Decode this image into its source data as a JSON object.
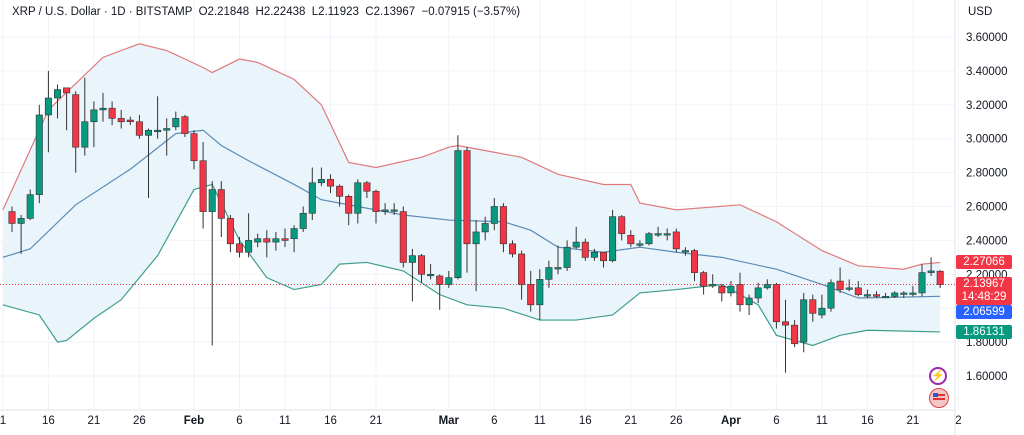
{
  "header": {
    "symbol": "XRP / U.S. Dollar · 1D · BITSTAMP",
    "open": "O2.21848",
    "high": "H2.22438",
    "low": "L2.11923",
    "close": "C2.13967",
    "change": "−0.07915 (−3.57%)"
  },
  "axis": {
    "currency": "USD"
  },
  "badges": {
    "upper_band": "2.27066",
    "last_price": "2.13967",
    "countdown": "14:48:29",
    "middle_band": "2.06599",
    "lower_band": "1.86131"
  },
  "icons": [
    "lightning-icon",
    "us-flag-icon"
  ],
  "colors": {
    "up": "#089981",
    "down": "#f23645",
    "upper_band": "#e07a7a",
    "middle_band": "#5b8bb5",
    "lower_band": "#3f9e8a",
    "band_fill": "#eaf4fb",
    "middle_badge": "#2962ff"
  },
  "chart_data": {
    "type": "candlestick",
    "title": "XRP / U.S. Dollar · 1D · BITSTAMP",
    "ylim": [
      1.45,
      3.7
    ],
    "yticks": [
      3.6,
      3.4,
      3.2,
      3.0,
      2.8,
      2.6,
      2.4,
      2.2,
      2.0,
      1.8,
      1.6
    ],
    "ytick_labels": [
      "3.60000",
      "3.40000",
      "3.20000",
      "3.00000",
      "2.80000",
      "2.60000",
      "2.40000",
      "2.20000",
      "2.00000",
      "1.80000",
      "1.60000"
    ],
    "xticks": [
      {
        "date": "Jan 11",
        "label": "1"
      },
      {
        "date": "Jan 16",
        "label": "16"
      },
      {
        "date": "Jan 21",
        "label": "21"
      },
      {
        "date": "Jan 26",
        "label": "26"
      },
      {
        "date": "Feb 1",
        "label": "Feb"
      },
      {
        "date": "Feb 6",
        "label": "6"
      },
      {
        "date": "Feb 11",
        "label": "11"
      },
      {
        "date": "Feb 16",
        "label": "16"
      },
      {
        "date": "Feb 21",
        "label": "21"
      },
      {
        "date": "Mar 1",
        "label": "Mar"
      },
      {
        "date": "Mar 6",
        "label": "6"
      },
      {
        "date": "Mar 11",
        "label": "11"
      },
      {
        "date": "Mar 16",
        "label": "16"
      },
      {
        "date": "Mar 21",
        "label": "21"
      },
      {
        "date": "Mar 26",
        "label": "26"
      },
      {
        "date": "Apr 1",
        "label": "Apr"
      },
      {
        "date": "Apr 6",
        "label": "6"
      },
      {
        "date": "Apr 11",
        "label": "11"
      },
      {
        "date": "Apr 16",
        "label": "16"
      },
      {
        "date": "Apr 21",
        "label": "21"
      },
      {
        "date": "Apr 26",
        "label": "2"
      }
    ],
    "start_date": "Jan 12",
    "last_price": 2.13967,
    "candles_ohlc": [
      [
        2.57,
        2.6,
        2.45,
        2.5
      ],
      [
        2.5,
        2.55,
        2.32,
        2.53
      ],
      [
        2.53,
        2.7,
        2.52,
        2.67
      ],
      [
        2.67,
        3.2,
        2.62,
        3.14
      ],
      [
        3.14,
        3.4,
        2.92,
        3.24
      ],
      [
        3.24,
        3.32,
        3.12,
        3.29
      ],
      [
        3.3,
        3.3,
        3.05,
        3.27
      ],
      [
        3.26,
        3.28,
        2.8,
        2.95
      ],
      [
        2.95,
        3.36,
        2.9,
        3.1
      ],
      [
        3.1,
        3.22,
        2.95,
        3.17
      ],
      [
        3.17,
        3.27,
        3.1,
        3.18
      ],
      [
        3.18,
        3.22,
        3.08,
        3.12
      ],
      [
        3.12,
        3.17,
        3.06,
        3.1
      ],
      [
        3.11,
        3.13,
        3.08,
        3.1
      ],
      [
        3.1,
        3.14,
        3.0,
        3.02
      ],
      [
        3.02,
        3.06,
        2.65,
        3.05
      ],
      [
        3.05,
        3.25,
        3.0,
        3.05
      ],
      [
        3.05,
        3.12,
        2.9,
        3.06
      ],
      [
        3.07,
        3.16,
        3.05,
        3.12
      ],
      [
        3.13,
        3.14,
        3.01,
        3.03
      ],
      [
        3.03,
        3.05,
        2.82,
        2.87
      ],
      [
        2.87,
        2.98,
        2.47,
        2.57
      ],
      [
        2.57,
        2.75,
        1.78,
        2.7
      ],
      [
        2.7,
        2.75,
        2.42,
        2.53
      ],
      [
        2.53,
        2.55,
        2.33,
        2.38
      ],
      [
        2.38,
        2.42,
        2.3,
        2.33
      ],
      [
        2.33,
        2.56,
        2.3,
        2.4
      ],
      [
        2.39,
        2.44,
        2.36,
        2.41
      ],
      [
        2.41,
        2.46,
        2.3,
        2.39
      ],
      [
        2.39,
        2.45,
        2.34,
        2.41
      ],
      [
        2.41,
        2.47,
        2.36,
        2.4
      ],
      [
        2.41,
        2.49,
        2.33,
        2.47
      ],
      [
        2.47,
        2.6,
        2.45,
        2.56
      ],
      [
        2.56,
        2.83,
        2.52,
        2.74
      ],
      [
        2.74,
        2.83,
        2.72,
        2.76
      ],
      [
        2.76,
        2.79,
        2.68,
        2.72
      ],
      [
        2.72,
        2.73,
        2.6,
        2.66
      ],
      [
        2.66,
        2.67,
        2.49,
        2.56
      ],
      [
        2.56,
        2.76,
        2.5,
        2.74
      ],
      [
        2.74,
        2.75,
        2.65,
        2.69
      ],
      [
        2.69,
        2.7,
        2.5,
        2.57
      ],
      [
        2.57,
        2.62,
        2.55,
        2.58
      ],
      [
        2.58,
        2.62,
        2.55,
        2.58
      ],
      [
        2.57,
        2.6,
        2.24,
        2.27
      ],
      [
        2.27,
        2.35,
        2.04,
        2.31
      ],
      [
        2.31,
        2.32,
        2.15,
        2.2
      ],
      [
        2.2,
        2.26,
        2.17,
        2.2
      ],
      [
        2.19,
        2.2,
        1.99,
        2.14
      ],
      [
        2.14,
        2.22,
        2.12,
        2.18
      ],
      [
        2.18,
        3.02,
        2.17,
        2.93
      ],
      [
        2.93,
        2.95,
        2.21,
        2.38
      ],
      [
        2.38,
        2.52,
        2.1,
        2.45
      ],
      [
        2.45,
        2.54,
        2.4,
        2.5
      ],
      [
        2.5,
        2.65,
        2.46,
        2.6
      ],
      [
        2.6,
        2.62,
        2.33,
        2.38
      ],
      [
        2.38,
        2.4,
        2.3,
        2.32
      ],
      [
        2.32,
        2.34,
        2.05,
        2.14
      ],
      [
        2.14,
        2.22,
        1.98,
        2.02
      ],
      [
        2.02,
        2.23,
        1.93,
        2.17
      ],
      [
        2.17,
        2.28,
        2.12,
        2.24
      ],
      [
        2.24,
        2.37,
        2.2,
        2.24
      ],
      [
        2.24,
        2.4,
        2.22,
        2.36
      ],
      [
        2.36,
        2.48,
        2.35,
        2.39
      ],
      [
        2.39,
        2.41,
        2.28,
        2.3
      ],
      [
        2.3,
        2.35,
        2.28,
        2.33
      ],
      [
        2.33,
        2.33,
        2.24,
        2.28
      ],
      [
        2.28,
        2.58,
        2.27,
        2.54
      ],
      [
        2.54,
        2.55,
        2.4,
        2.44
      ],
      [
        2.43,
        2.46,
        2.36,
        2.38
      ],
      [
        2.38,
        2.4,
        2.36,
        2.38
      ],
      [
        2.38,
        2.45,
        2.37,
        2.44
      ],
      [
        2.44,
        2.48,
        2.42,
        2.44
      ],
      [
        2.44,
        2.47,
        2.4,
        2.44
      ],
      [
        2.45,
        2.47,
        2.33,
        2.35
      ],
      [
        2.34,
        2.36,
        2.31,
        2.34
      ],
      [
        2.34,
        2.35,
        2.16,
        2.21
      ],
      [
        2.21,
        2.22,
        2.08,
        2.13
      ],
      [
        2.14,
        2.2,
        2.12,
        2.14
      ],
      [
        2.13,
        2.14,
        2.04,
        2.09
      ],
      [
        2.09,
        2.16,
        2.07,
        2.13
      ],
      [
        2.14,
        2.21,
        1.98,
        2.02
      ],
      [
        2.02,
        2.08,
        1.96,
        2.06
      ],
      [
        2.06,
        2.15,
        2.03,
        2.12
      ],
      [
        2.12,
        2.17,
        2.11,
        2.14
      ],
      [
        2.14,
        2.15,
        1.88,
        1.92
      ],
      [
        1.92,
        2.05,
        1.62,
        1.9
      ],
      [
        1.9,
        1.93,
        1.77,
        1.79
      ],
      [
        1.8,
        2.09,
        1.74,
        2.05
      ],
      [
        2.05,
        2.08,
        1.92,
        1.97
      ],
      [
        1.96,
        2.08,
        1.94,
        2.0
      ],
      [
        2.0,
        2.17,
        1.98,
        2.15
      ],
      [
        2.16,
        2.24,
        2.09,
        2.11
      ],
      [
        2.12,
        2.17,
        2.1,
        2.12
      ],
      [
        2.12,
        2.16,
        2.07,
        2.08
      ],
      [
        2.08,
        2.11,
        2.06,
        2.08
      ],
      [
        2.08,
        2.1,
        2.06,
        2.07
      ],
      [
        2.07,
        2.09,
        2.06,
        2.07
      ],
      [
        2.07,
        2.1,
        2.06,
        2.09
      ],
      [
        2.09,
        2.1,
        2.06,
        2.09
      ],
      [
        2.09,
        2.13,
        2.07,
        2.09
      ],
      [
        2.09,
        2.26,
        2.07,
        2.21
      ],
      [
        2.21,
        2.3,
        2.19,
        2.22
      ],
      [
        2.21848,
        2.22438,
        2.11923,
        2.13967
      ]
    ],
    "bollinger_upper": [
      [
        "Jan 11",
        2.58
      ],
      [
        "Jan 16",
        3.17
      ],
      [
        "Jan 22",
        3.48
      ],
      [
        "Jan 26",
        3.56
      ],
      [
        "Jan 29",
        3.52
      ],
      [
        "Feb 2",
        3.42
      ],
      [
        "Feb 3",
        3.39
      ],
      [
        "Feb 6",
        3.47
      ],
      [
        "Feb 8",
        3.45
      ],
      [
        "Feb 12",
        3.35
      ],
      [
        "Feb 15",
        3.2
      ],
      [
        "Feb 18",
        2.86
      ],
      [
        "Feb 21",
        2.83
      ],
      [
        "Feb 26",
        2.89
      ],
      [
        "Mar 1",
        2.95
      ],
      [
        "Mar 2",
        2.96
      ],
      [
        "Mar 9",
        2.89
      ],
      [
        "Mar 13",
        2.79
      ],
      [
        "Mar 18",
        2.73
      ],
      [
        "Mar 21",
        2.73
      ],
      [
        "Mar 22",
        2.62
      ],
      [
        "Mar 26",
        2.58
      ],
      [
        "Apr 2",
        2.61
      ],
      [
        "Apr 6",
        2.51
      ],
      [
        "Apr 11",
        2.34
      ],
      [
        "Apr 15",
        2.25
      ],
      [
        "Apr 20",
        2.23
      ],
      [
        "Apr 22",
        2.26
      ],
      [
        "Apr 24",
        2.27
      ]
    ],
    "bollinger_middle": [
      [
        "Jan 11",
        2.3
      ],
      [
        "Jan 14",
        2.35
      ],
      [
        "Jan 19",
        2.61
      ],
      [
        "Jan 25",
        2.82
      ],
      [
        "Jan 30",
        3.03
      ],
      [
        "Feb 2",
        3.05
      ],
      [
        "Feb 4",
        2.96
      ],
      [
        "Feb 7",
        2.87
      ],
      [
        "Feb 12",
        2.73
      ],
      [
        "Feb 15",
        2.64
      ],
      [
        "Feb 19",
        2.6
      ],
      [
        "Feb 24",
        2.55
      ],
      [
        "Mar 1",
        2.52
      ],
      [
        "Mar 7",
        2.51
      ],
      [
        "Mar 10",
        2.46
      ],
      [
        "Mar 13",
        2.36
      ],
      [
        "Mar 18",
        2.33
      ],
      [
        "Mar 22",
        2.36
      ],
      [
        "Mar 26",
        2.33
      ],
      [
        "Mar 31",
        2.3
      ],
      [
        "Apr 6",
        2.23
      ],
      [
        "Apr 11",
        2.14
      ],
      [
        "Apr 15",
        2.06
      ],
      [
        "Apr 24",
        2.07
      ]
    ],
    "bollinger_lower": [
      [
        "Jan 11",
        2.02
      ],
      [
        "Jan 15",
        1.96
      ],
      [
        "Jan 17",
        1.8
      ],
      [
        "Jan 18",
        1.81
      ],
      [
        "Jan 21",
        1.94
      ],
      [
        "Jan 24",
        2.05
      ],
      [
        "Jan 28",
        2.31
      ],
      [
        "Feb 1",
        2.7
      ],
      [
        "Feb 3",
        2.73
      ],
      [
        "Feb 6",
        2.4
      ],
      [
        "Feb 9",
        2.18
      ],
      [
        "Feb 12",
        2.11
      ],
      [
        "Feb 15",
        2.14
      ],
      [
        "Feb 17",
        2.26
      ],
      [
        "Feb 20",
        2.27
      ],
      [
        "Feb 24",
        2.22
      ],
      [
        "Feb 28",
        2.08
      ],
      [
        "Mar 3",
        2.02
      ],
      [
        "Mar 7",
        2.0
      ],
      [
        "Mar 11",
        1.93
      ],
      [
        "Mar 15",
        1.93
      ],
      [
        "Mar 19",
        1.96
      ],
      [
        "Mar 22",
        2.09
      ],
      [
        "Mar 26",
        2.11
      ],
      [
        "Mar 31",
        2.14
      ],
      [
        "Apr 4",
        2.02
      ],
      [
        "Apr 6",
        1.84
      ],
      [
        "Apr 10",
        1.78
      ],
      [
        "Apr 13",
        1.84
      ],
      [
        "Apr 16",
        1.87
      ],
      [
        "Apr 24",
        1.86
      ]
    ]
  }
}
